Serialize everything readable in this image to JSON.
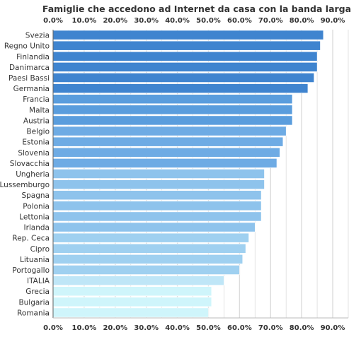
{
  "chart_data": {
    "type": "bar",
    "orientation": "horizontal",
    "title": "Famiglie che accedono ad Internet da casa con la banda larga",
    "categories": [
      "Svezia",
      "Regno Unito",
      "Finlandia",
      "Danimarca",
      "Paesi Bassi",
      "Germania",
      "Francia",
      "Malta",
      "Austria",
      "Belgio",
      "Estonia",
      "Slovenia",
      "Slovacchia",
      "Ungheria",
      "Lussemburgo",
      "Spagna",
      "Polonia",
      "Lettonia",
      "Irlanda",
      "Rep. Ceca",
      "Cipro",
      "Lituania",
      "Portogallo",
      "ITALIA",
      "Grecia",
      "Bulgaria",
      "Romania"
    ],
    "values": [
      87,
      86,
      85,
      85,
      84,
      82,
      77,
      77,
      77,
      75,
      74,
      73,
      72,
      68,
      68,
      67,
      67,
      67,
      65,
      63,
      62,
      61,
      60,
      55,
      51,
      51,
      50
    ],
    "xlim": [
      0,
      95
    ],
    "xticks": [
      0,
      10,
      20,
      30,
      40,
      50,
      60,
      70,
      80,
      90
    ],
    "xtick_labels": [
      "0.0%",
      "10.0%",
      "20.0%",
      "30.0%",
      "40.0%",
      "50.0%",
      "60.0%",
      "70.0%",
      "80.0%",
      "90.0%"
    ],
    "xlabel": "",
    "ylabel": "",
    "grid": true,
    "legend": "none",
    "bar_colors": [
      "#3f84cf",
      "#3f84cf",
      "#3f84cf",
      "#3f84cf",
      "#3f84cf",
      "#3f84cf",
      "#5a9ddd",
      "#5a9ddd",
      "#5a9ddd",
      "#6eabe4",
      "#6eabe4",
      "#6eabe4",
      "#6eabe4",
      "#8ec3ec",
      "#8ec3ec",
      "#8ec3ec",
      "#8ec3ec",
      "#8ec3ec",
      "#8ec3ec",
      "#9fd0f0",
      "#9fd0f0",
      "#9fd0f0",
      "#9fd0f0",
      "#bfe6f7",
      "#cff5fb",
      "#cff5fb",
      "#cff5fb"
    ],
    "bar_border_color": "#ffffff",
    "grid_color": "#dcdcdc",
    "axis_color": "#666666",
    "text_color": "#333333"
  }
}
